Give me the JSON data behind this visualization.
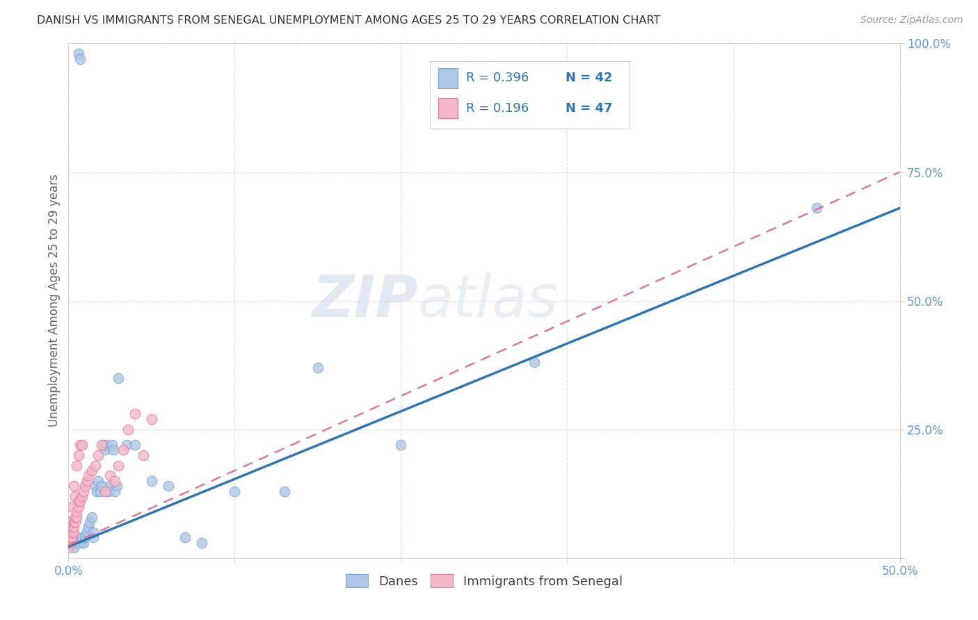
{
  "title": "DANISH VS IMMIGRANTS FROM SENEGAL UNEMPLOYMENT AMONG AGES 25 TO 29 YEARS CORRELATION CHART",
  "source": "Source: ZipAtlas.com",
  "ylabel": "Unemployment Among Ages 25 to 29 years",
  "xlim": [
    0.0,
    0.5
  ],
  "ylim": [
    0.0,
    1.0
  ],
  "xticks": [
    0.0,
    0.1,
    0.2,
    0.3,
    0.4,
    0.5
  ],
  "yticks": [
    0.0,
    0.25,
    0.5,
    0.75,
    1.0
  ],
  "xticklabels": [
    "0.0%",
    "",
    "",
    "",
    "",
    "50.0%"
  ],
  "yticklabels": [
    "",
    "25.0%",
    "50.0%",
    "75.0%",
    "100.0%"
  ],
  "danes_color": "#aec6e8",
  "senegal_color": "#f5b8c8",
  "danes_edge_color": "#7ba7d4",
  "senegal_edge_color": "#e87898",
  "trendline_danes_color": "#2e75b6",
  "trendline_senegal_color": "#e07898",
  "legend_danes_R": "R = 0.396",
  "legend_danes_N": "N = 42",
  "legend_senegal_R": "R = 0.196",
  "legend_senegal_N": "N = 47",
  "watermark_zip": "ZIP",
  "watermark_atlas": "atlas",
  "background_color": "#ffffff",
  "grid_color": "#d8e0ec",
  "danes_x": [
    0.003,
    0.004,
    0.005,
    0.006,
    0.007,
    0.007,
    0.008,
    0.009,
    0.01,
    0.011,
    0.012,
    0.013,
    0.014,
    0.015,
    0.015,
    0.016,
    0.017,
    0.018,
    0.019,
    0.02,
    0.021,
    0.022,
    0.023,
    0.024,
    0.025,
    0.026,
    0.027,
    0.028,
    0.029,
    0.03,
    0.035,
    0.04,
    0.05,
    0.06,
    0.07,
    0.08,
    0.1,
    0.13,
    0.15,
    0.2,
    0.28,
    0.45
  ],
  "danes_y": [
    0.02,
    0.03,
    0.04,
    0.98,
    0.97,
    0.03,
    0.04,
    0.03,
    0.04,
    0.05,
    0.06,
    0.07,
    0.08,
    0.04,
    0.05,
    0.14,
    0.13,
    0.15,
    0.13,
    0.14,
    0.22,
    0.21,
    0.22,
    0.13,
    0.14,
    0.22,
    0.21,
    0.13,
    0.14,
    0.35,
    0.22,
    0.22,
    0.15,
    0.14,
    0.04,
    0.03,
    0.13,
    0.13,
    0.37,
    0.22,
    0.38,
    0.68
  ],
  "senegal_x": [
    0.0,
    0.0,
    0.0,
    0.0,
    0.001,
    0.001,
    0.001,
    0.001,
    0.001,
    0.002,
    0.002,
    0.002,
    0.002,
    0.003,
    0.003,
    0.003,
    0.003,
    0.004,
    0.004,
    0.004,
    0.005,
    0.005,
    0.005,
    0.006,
    0.006,
    0.006,
    0.007,
    0.007,
    0.008,
    0.008,
    0.009,
    0.01,
    0.011,
    0.012,
    0.014,
    0.016,
    0.018,
    0.02,
    0.022,
    0.025,
    0.028,
    0.03,
    0.033,
    0.036,
    0.04,
    0.045,
    0.05
  ],
  "senegal_y": [
    0.02,
    0.03,
    0.04,
    0.05,
    0.03,
    0.04,
    0.05,
    0.06,
    0.07,
    0.04,
    0.05,
    0.06,
    0.1,
    0.05,
    0.06,
    0.07,
    0.14,
    0.07,
    0.08,
    0.12,
    0.08,
    0.09,
    0.18,
    0.1,
    0.11,
    0.2,
    0.11,
    0.22,
    0.12,
    0.22,
    0.13,
    0.14,
    0.15,
    0.16,
    0.17,
    0.18,
    0.2,
    0.22,
    0.13,
    0.16,
    0.15,
    0.18,
    0.21,
    0.25,
    0.28,
    0.2,
    0.27
  ],
  "danes_trendline_x": [
    0.0,
    0.5
  ],
  "danes_trendline_y": [
    0.022,
    0.68
  ],
  "senegal_trendline_x": [
    0.0,
    0.5
  ],
  "senegal_trendline_y": [
    0.025,
    0.75
  ]
}
